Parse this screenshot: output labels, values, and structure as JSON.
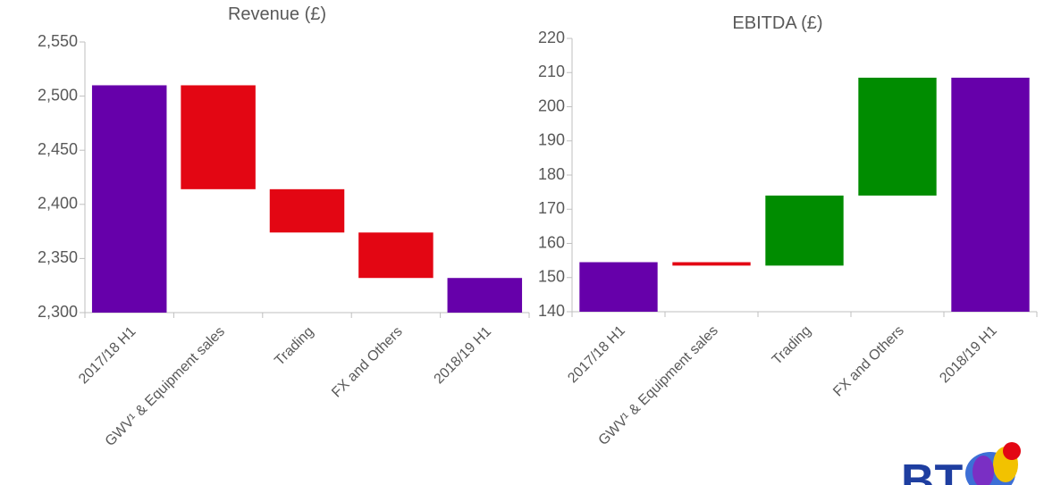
{
  "chart_data": [
    {
      "type": "waterfall",
      "title": "Revenue (£)",
      "categories": [
        "2017/18 H1",
        "GWV¹ & Equipment sales",
        "Trading",
        "FX  and Others",
        "2018/19 H1"
      ],
      "values": [
        2510,
        -96,
        -40,
        -42,
        2332
      ],
      "measure": [
        "absolute",
        "relative",
        "relative",
        "relative",
        "absolute"
      ],
      "colors": {
        "total": "#6600aa",
        "decrease": "#e30613",
        "increase": "#008c00"
      },
      "ylim": [
        2300,
        2550
      ],
      "yticks": [
        {
          "value": 2300,
          "label": "2,300"
        },
        {
          "value": 2350,
          "label": "2,350"
        },
        {
          "value": 2400,
          "label": "2,400"
        },
        {
          "value": 2450,
          "label": "2,450"
        },
        {
          "value": 2500,
          "label": "2,500"
        },
        {
          "value": 2550,
          "label": "2,550"
        }
      ]
    },
    {
      "type": "waterfall",
      "title": "EBITDA (£)",
      "categories": [
        "2017/18 H1",
        "GWV¹ & Equipment sales",
        "Trading",
        "FX and Others",
        "2018/19 H1"
      ],
      "values": [
        154.5,
        -1,
        20.5,
        34.5,
        208.5
      ],
      "measure": [
        "absolute",
        "relative",
        "relative",
        "relative",
        "absolute"
      ],
      "colors": {
        "total": "#6600aa",
        "decrease": "#e30613",
        "increase": "#008c00"
      },
      "ylim": [
        140,
        220
      ],
      "yticks": [
        140,
        150,
        160,
        170,
        180,
        190,
        200,
        210,
        220
      ]
    }
  ],
  "logo": "BT"
}
